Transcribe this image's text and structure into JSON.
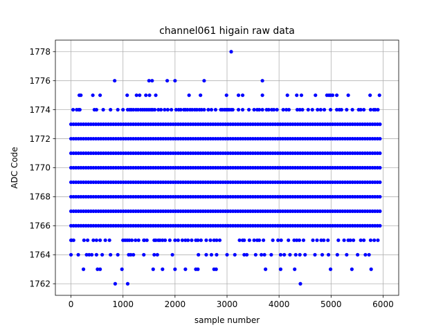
{
  "chart_data": {
    "type": "scatter",
    "title": "channel061 higain raw data",
    "xlabel": "sample number",
    "ylabel": "ADC Code",
    "xlim": [
      -300,
      6300
    ],
    "ylim": [
      1761.2,
      1778.8
    ],
    "xticks": [
      0,
      1000,
      2000,
      3000,
      4000,
      5000,
      6000
    ],
    "yticks": [
      1762,
      1764,
      1766,
      1768,
      1770,
      1772,
      1774,
      1776,
      1778
    ],
    "grid": true,
    "marker_color": "#0000ff",
    "x_range": [
      0,
      5940
    ],
    "dense_levels": [
      1766,
      1767,
      1768,
      1769,
      1770,
      1771,
      1772,
      1773
    ],
    "sparse_levels": {
      "1774": [
        40,
        110,
        150,
        170,
        450,
        490,
        620,
        760,
        900,
        1000,
        1090,
        1130,
        1160,
        1200,
        1250,
        1290,
        1340,
        1380,
        1420,
        1460,
        1500,
        1540,
        1570,
        1610,
        1680,
        1730,
        1800,
        1860,
        1930,
        2020,
        2070,
        2110,
        2170,
        2200,
        2240,
        2290,
        2330,
        2380,
        2420,
        2470,
        2510,
        2560,
        2640,
        2700,
        2780,
        2880,
        2910,
        2950,
        2980,
        3010,
        3040,
        3080,
        3110,
        3220,
        3300,
        3420,
        3520,
        3580,
        3620,
        3680,
        3760,
        3800,
        3860,
        3900,
        3960,
        4080,
        4140,
        4190,
        4350,
        4400,
        4450,
        4560,
        4640,
        4740,
        4800,
        4870,
        4990,
        5110,
        5160,
        5200,
        5300,
        5410,
        5530,
        5570,
        5630,
        5760,
        5820,
        5850,
        5900
      ],
      "1775": [
        160,
        190,
        420,
        560,
        1080,
        1260,
        1320,
        1440,
        1510,
        1630,
        2270,
        2490,
        2990,
        3220,
        3300,
        3680,
        4160,
        4340,
        4430,
        4700,
        4920,
        4960,
        4990,
        5030,
        5110,
        5330,
        5750,
        5930
      ],
      "1776": [
        840,
        1500,
        1560,
        1850,
        2000,
        2560,
        3680
      ],
      "1778": [
        3080
      ],
      "1765": [
        0,
        10,
        50,
        250,
        320,
        430,
        490,
        560,
        660,
        740,
        1000,
        1040,
        1080,
        1120,
        1170,
        1240,
        1300,
        1400,
        1410,
        1460,
        1600,
        1630,
        1680,
        1710,
        1760,
        1810,
        1900,
        2000,
        2060,
        2140,
        2200,
        2250,
        2320,
        2400,
        2440,
        2500,
        2600,
        2680,
        2750,
        2800,
        2860,
        3240,
        3300,
        3330,
        3430,
        3520,
        3580,
        3620,
        3700,
        3880,
        3980,
        4040,
        4180,
        4290,
        4340,
        4390,
        4470,
        4650,
        4730,
        4810,
        4860,
        4940,
        5140,
        5250,
        5330,
        5370,
        5430,
        5570,
        5630,
        5760,
        5830,
        5900
      ],
      "1764": [
        0,
        140,
        300,
        350,
        400,
        490,
        600,
        760,
        900,
        1110,
        1150,
        1200,
        1400,
        1600,
        1660,
        1950,
        2450,
        2600,
        2700,
        2800,
        3000,
        3150,
        3330,
        3380,
        3550,
        3660,
        3720,
        3850,
        4030,
        4100,
        4210,
        4320,
        4400,
        4500,
        4690,
        4830,
        4950,
        5120,
        5300,
        5510,
        5660,
        5730
      ],
      "1763": [
        240,
        510,
        560,
        980,
        1580,
        1760,
        2000,
        2200,
        2400,
        2440,
        2750,
        2790,
        3740,
        4030,
        4300,
        4990,
        5400,
        5770
      ],
      "1762": [
        850,
        1090,
        4410
      ]
    }
  }
}
